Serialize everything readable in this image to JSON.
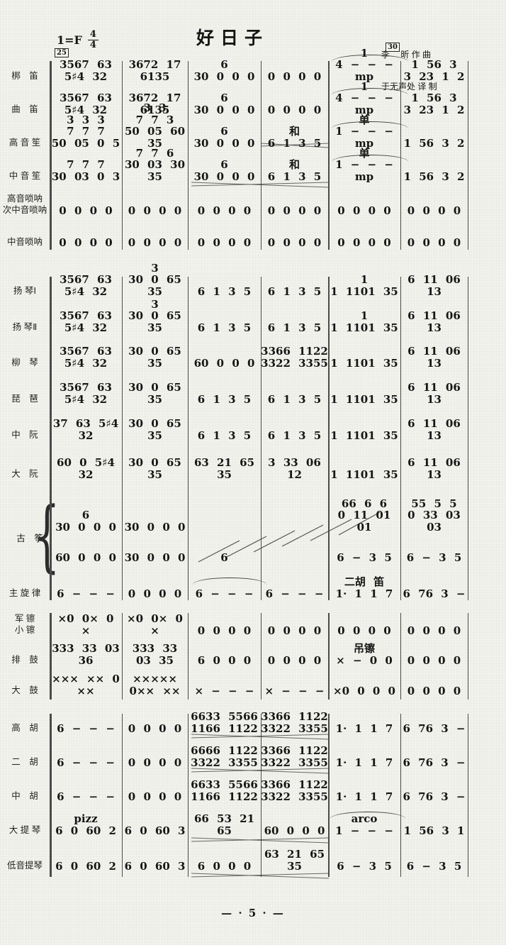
{
  "header": {
    "key": "1=F",
    "time_top": "4",
    "time_bottom": "4",
    "title": "好日子",
    "credit_line1": "李　 昕 作 曲",
    "credit_line2": "于无声处 译 制",
    "rehearsal_start": "25",
    "rehearsal_mid": "30"
  },
  "score": {
    "guzheng_label": "古　筝",
    "staves": [
      {
        "label": "梆　笛",
        "measures": [
          "3567 63 5♯4 32",
          "3672 17 6135",
          "6\n30 0 0 0",
          "0 0 0 0",
          "1\n4 − − −\nmp",
          "1 56 3\n3 23 1 2"
        ]
      },
      {
        "label": "曲　笛",
        "measures": [
          "3567 63 5♯4 32",
          "3672 17 6135",
          "6\n30 0 0 0",
          "0 0 0 0",
          "1\n4 − − −\nmp",
          "1 56 3\n3 23 1 2"
        ]
      },
      {
        "label": "高 音 笙",
        "measures": [
          "3 3 3\n7 7 7\n50 05 0 5",
          "3 3\n7 7 3\n50 05 60 35",
          "6\n30 0 0 0",
          "和\n6 1 3 5",
          "单\n1 − − −\nmp",
          "1 56 3 2"
        ]
      },
      {
        "label": "中 音 笙",
        "measures": [
          "7 7 7\n30 03 0 3",
          "7 7 6\n30 03 30 35",
          "6\n30 0 0 0",
          "和\n6 1 3 5",
          "单\n1 − − −\nmp",
          "1 56 3 2"
        ]
      },
      {
        "label": "高音唢呐\n次中音唢呐",
        "measures": [
          "0 0 0 0",
          "0 0 0 0",
          "0 0 0 0",
          "0 0 0 0",
          "0 0 0 0",
          "0 0 0 0"
        ]
      },
      {
        "label": "中音唢呐",
        "measures": [
          "0 0 0 0",
          "0 0 0 0",
          "0 0 0 0",
          "0 0 0 0",
          "0 0 0 0",
          "0 0 0 0"
        ]
      },
      {
        "label": "扬 琴Ⅰ",
        "measures": [
          "3567 63 5♯4 32",
          "3\n30 0 65 35",
          "6 1 3 5",
          "6 1 3 5",
          "1\n1 1101 35",
          "6 11 06 13"
        ]
      },
      {
        "label": "扬 琴Ⅱ",
        "measures": [
          "3567 63 5♯4 32",
          "3\n30 0 65 35",
          "6 1 3 5",
          "6 1 3 5",
          "1\n1 1101 35",
          "6 11 06 13"
        ]
      },
      {
        "label": "柳　琴",
        "measures": [
          "3567 63 5♯4 32",
          "30 0 65 35",
          "60 0 0 0",
          "3366 1122 3322 3355",
          "1 1101 35",
          "6 11 06 13"
        ]
      },
      {
        "label": "琵　琶",
        "measures": [
          "3567 63 5♯4 32",
          "30 0 65 35",
          "6 1 3 5",
          "6 1 3 5",
          "1 1101 35",
          "6 11 06 13"
        ]
      },
      {
        "label": "中　阮",
        "measures": [
          "37 63 5♯4 32",
          "30 0 65 35",
          "6 1 3 5",
          "6 1 3 5",
          "1 1101 35",
          "6 11 06 13"
        ]
      },
      {
        "label": "大　阮",
        "measures": [
          "60 0 5♯4 32",
          "30 0 65 35",
          "63 21 65 35",
          "3 33 06 12",
          "1 1101 35",
          "6 11 06 13"
        ]
      },
      {
        "label": "",
        "measures": [
          "6\n30 0 0 0",
          "30 0 0 0",
          "",
          "",
          "66 6 6\n0 11 01 01",
          "55 5 5\n0 33 03 03"
        ]
      },
      {
        "label": "",
        "measures": [
          "60 0 0 0",
          "30 0 0 0",
          "6",
          "",
          "6 − 3 5",
          "6 − 3 5"
        ]
      },
      {
        "label": "主 旋 律",
        "measures": [
          "6 − − −",
          "0 0 0 0",
          "6 − − −",
          "6 − − −",
          "二胡 笛\n1· 1 1 7",
          "6 76 3 −"
        ]
      },
      {
        "label": "军 镲\n小 镲",
        "measures": [
          "×0 0× 0 ×",
          "×0 0× 0 ×",
          "0 0 0 0",
          "0 0 0 0",
          "0 0 0 0",
          "0 0 0 0"
        ]
      },
      {
        "label": "排　鼓",
        "measures": [
          "333 33 03 36",
          "333 33 03 35",
          "6 0 0 0",
          "0 0 0 0",
          "吊镲\n× − 0 0",
          "0 0 0 0"
        ]
      },
      {
        "label": "大　鼓",
        "measures": [
          "××× ×× 0 ××",
          "××××× 0×× ××",
          "× − − −",
          "× − − −",
          "×0 0 0 0",
          "0 0 0 0"
        ]
      },
      {
        "label": "高　胡",
        "measures": [
          "6 − − −",
          "0 0 0 0",
          "6633 5566 1166 1122",
          "3366 1122 3322 3355",
          "1· 1 1 7",
          "6 76 3 −"
        ]
      },
      {
        "label": "二　胡",
        "measures": [
          "6 − − −",
          "0 0 0 0",
          "6666 1122 3322 3355",
          "3366 1122 3322 3355",
          "1· 1 1 7",
          "6 76 3 −"
        ]
      },
      {
        "label": "中　胡",
        "measures": [
          "6 − − −",
          "0 0 0 0",
          "6633 5566 1166 1122",
          "3366 1122 3322 3355",
          "1· 1 1 7",
          "6 76 3 −"
        ]
      },
      {
        "label": "大 提 琴",
        "measures": [
          "pizz\n6 0 60 2",
          "6 0 60 3",
          "66 53 21 65",
          "60 0 0 0",
          "arco\n1 − − −",
          "1 56 3 1"
        ]
      },
      {
        "label": "低音提琴",
        "measures": [
          "6 0 60 2",
          "6 0 60 3",
          "6 0 0 0",
          "63 21 65 35",
          "6 − 3 5",
          "6 − 3 5"
        ]
      }
    ]
  },
  "footer": {
    "page_number": "— · 5 · —"
  }
}
